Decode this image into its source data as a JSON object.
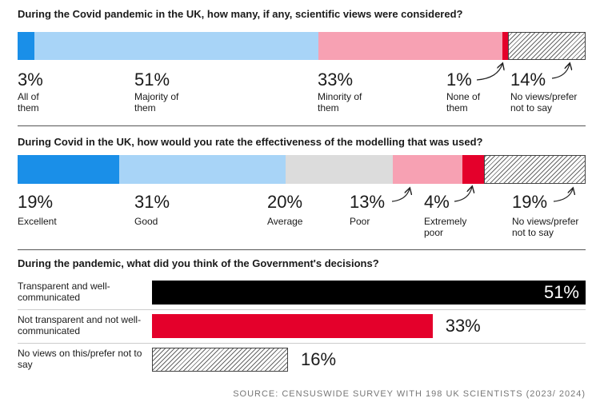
{
  "chart_data": [
    {
      "type": "stacked-bar",
      "title": "During the Covid pandemic in the UK, how many, if any, scientific views were considered?",
      "categories": [
        "All of them",
        "Majority of them",
        "Minority of them",
        "None of them",
        "No views/prefer not to say"
      ],
      "values": [
        3,
        51,
        33,
        1,
        14
      ],
      "value_labels": [
        "3%",
        "51%",
        "33%",
        "1%",
        "14%"
      ],
      "colors": [
        "#1a8fe8",
        "#a8d4f7",
        "#f7a1b3",
        "#e4002b",
        "hatch"
      ]
    },
    {
      "type": "stacked-bar",
      "title": "During Covid in the UK, how would you rate the effectiveness of the modelling that was used?",
      "categories": [
        "Excellent",
        "Good",
        "Average",
        "Poor",
        "Extremely poor",
        "No views/prefer not to say"
      ],
      "values": [
        19,
        31,
        20,
        13,
        4,
        19
      ],
      "value_labels": [
        "19%",
        "31%",
        "20%",
        "13%",
        "4%",
        "19%"
      ],
      "colors": [
        "#1a8fe8",
        "#a8d4f7",
        "#dcdcdc",
        "#f7a1b3",
        "#e4002b",
        "hatch"
      ]
    },
    {
      "type": "bar",
      "title": "During the pandemic, what did you think of the Government's decisions?",
      "categories": [
        "Transparent and well-communicated",
        "Not transparent and not well-communicated",
        "No views on this/prefer not to say"
      ],
      "values": [
        51,
        33,
        16
      ],
      "value_labels": [
        "51%",
        "33%",
        "16%"
      ],
      "colors": [
        "#000000",
        "#e4002b",
        "hatch"
      ]
    }
  ],
  "source": "SOURCE: CENSUSWIDE SURVEY WITH 198 UK SCIENTISTS (2023/ 2024)"
}
